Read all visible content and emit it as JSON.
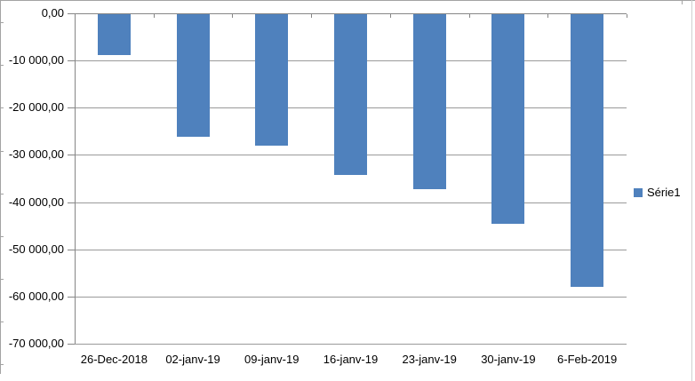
{
  "chart_data": {
    "type": "bar",
    "title": "",
    "xlabel": "",
    "ylabel": "",
    "categories": [
      "26-Dec-2018",
      "02-janv-19",
      "09-janv-19",
      "16-janv-19",
      "23-janv-19",
      "30-janv-19",
      "6-Feb-2019"
    ],
    "series": [
      {
        "name": "Série1",
        "color": "#4F81BD",
        "values": [
          -8700,
          -25900,
          -27900,
          -34000,
          -37100,
          -44500,
          -57800
        ]
      }
    ],
    "ylim": [
      -70000,
      0
    ],
    "y_step": 10000,
    "y_tick_labels": [
      "0,00",
      "-10 000,00",
      "-20 000,00",
      "-30 000,00",
      "-40 000,00",
      "-50 000,00",
      "-60 000,00",
      "-70 000,00"
    ],
    "grid": true,
    "legend_position": "right",
    "number_format": "french: space thousands separator, comma decimals"
  },
  "legend": {
    "label": "Série1"
  },
  "colors": {
    "bar": "#4F81BD",
    "axis": "#868686",
    "gridline": "#9A9A9A",
    "text": "#000000",
    "frame": "#A3A3A3",
    "background": "#FFFFFF"
  }
}
